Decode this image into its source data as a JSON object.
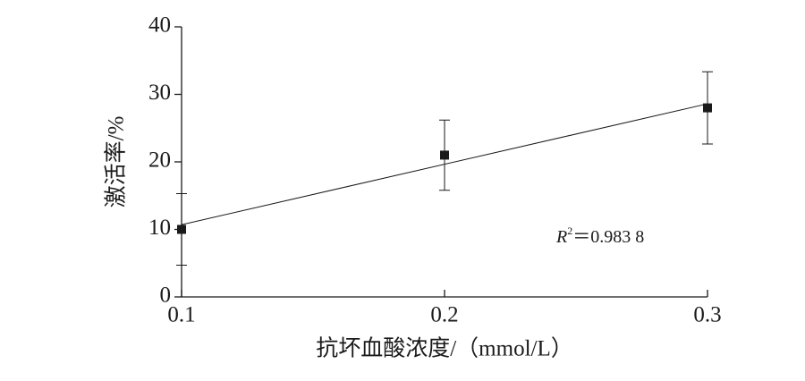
{
  "chart_data": {
    "type": "scatter",
    "x_label": "抗坏血酸浓度/（mmol/L）",
    "y_label": "激活率/%",
    "x": [
      0.1,
      0.2,
      0.3
    ],
    "series": [
      {
        "name": null,
        "color": "#1a1a1a",
        "values": [
          10,
          21,
          28
        ],
        "errors": [
          5.3,
          5.2,
          5.35
        ]
      }
    ],
    "fit": {
      "x": [
        0.1,
        0.3
      ],
      "values": [
        10.7,
        28.6
      ]
    },
    "annotation": {
      "var": "R",
      "sup": "2",
      "text": "＝0.983 8"
    },
    "xlim": [
      0.1,
      0.3
    ],
    "xticks": [
      0.1,
      0.2,
      0.3
    ],
    "ylim": [
      0,
      40
    ],
    "yticks": [
      0,
      10,
      20,
      30,
      40
    ],
    "grid": false
  }
}
